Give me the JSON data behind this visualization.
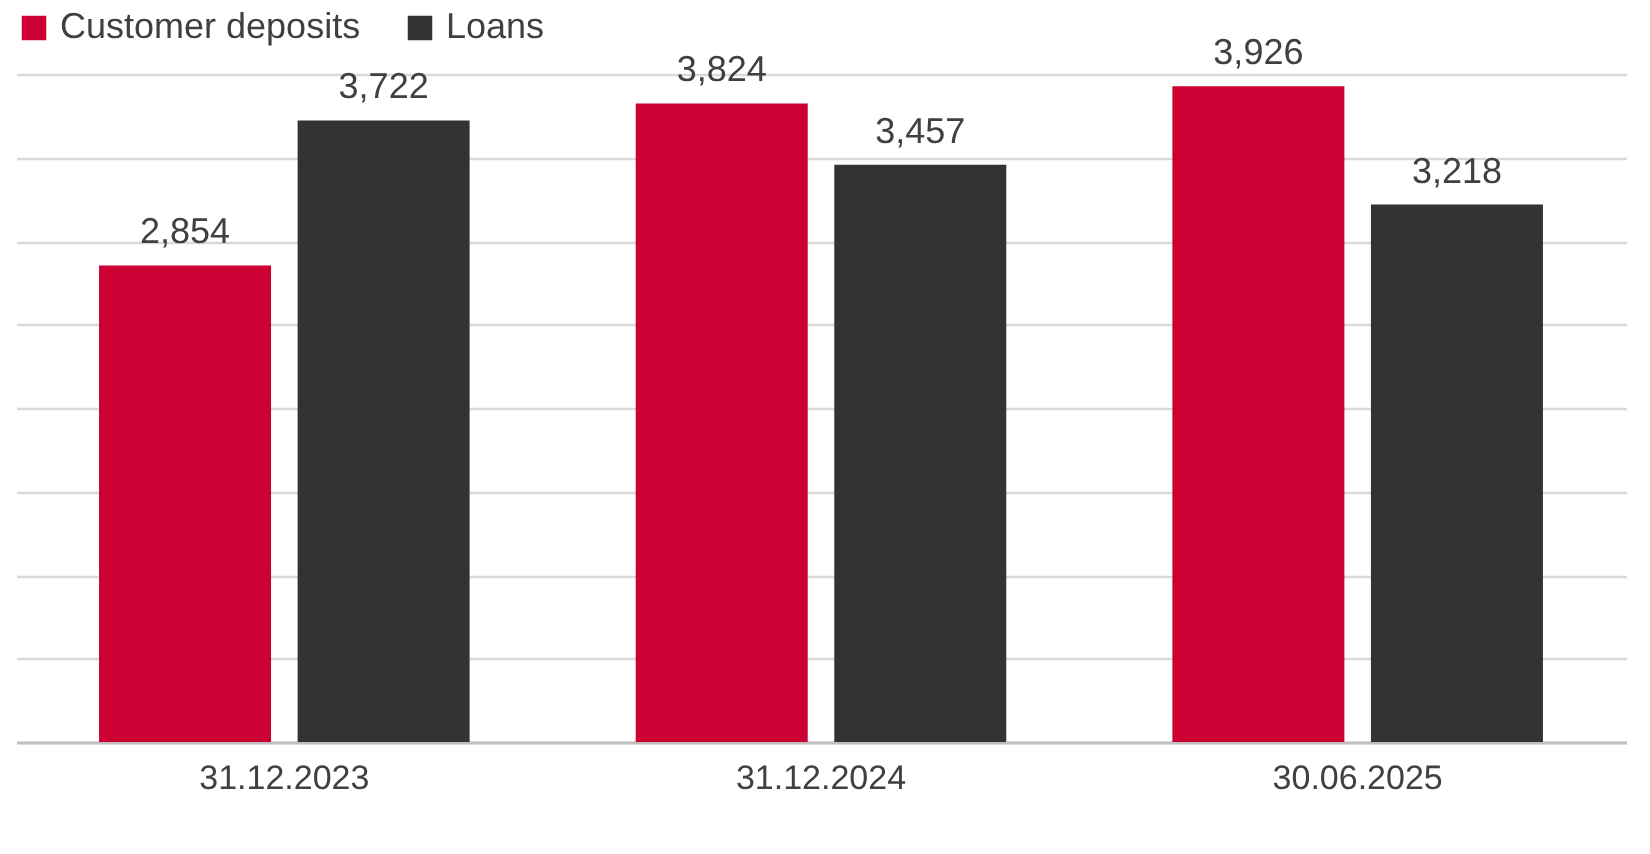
{
  "chart_data": {
    "type": "bar",
    "categories": [
      "31.12.2023",
      "31.12.2024",
      "30.06.2025"
    ],
    "series": [
      {
        "name": "Customer deposits",
        "color": "#cc0033",
        "values": [
          2854,
          3824,
          3926
        ],
        "value_labels": [
          "2,854",
          "3,824",
          "3,926"
        ]
      },
      {
        "name": "Loans",
        "color": "#333333",
        "values": [
          3722,
          3457,
          3218
        ],
        "value_labels": [
          "3,722",
          "3,457",
          "3,218"
        ]
      }
    ],
    "tick_labels": "x",
    "grid": "y",
    "legend": "top left"
  }
}
